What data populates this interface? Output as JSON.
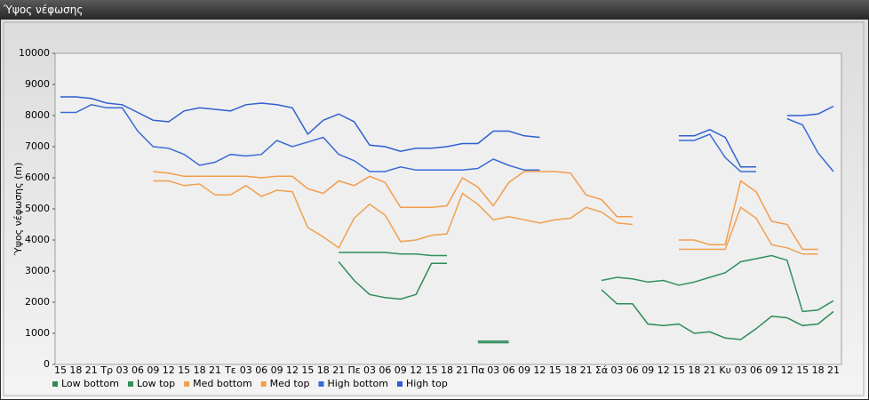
{
  "chart_data": {
    "type": "line",
    "title": "Ύψος νέφωσης",
    "y_label": "Ύψος νέφωσης (m)",
    "categories": [
      "15",
      "18",
      "21",
      "Τρ",
      "03",
      "06",
      "09",
      "12",
      "15",
      "18",
      "21",
      "Τε",
      "03",
      "06",
      "09",
      "12",
      "15",
      "18",
      "21",
      "Πε",
      "03",
      "06",
      "09",
      "12",
      "15",
      "18",
      "21",
      "Πα",
      "03",
      "06",
      "09",
      "12",
      "15",
      "18",
      "21",
      "Σά",
      "03",
      "06",
      "09",
      "12",
      "15",
      "18",
      "21",
      "Κυ",
      "03",
      "06",
      "09",
      "12",
      "15",
      "18",
      "21"
    ],
    "ylim": [
      0,
      10000
    ],
    "yticks": [
      0,
      1000,
      2000,
      3000,
      4000,
      5000,
      6000,
      7000,
      8000,
      9000,
      10000
    ],
    "legend": "bottom",
    "series": [
      {
        "name": "Low bottom",
        "color": "#2e8b57",
        "values": [
          null,
          null,
          null,
          null,
          null,
          null,
          null,
          null,
          null,
          null,
          null,
          null,
          null,
          null,
          null,
          null,
          null,
          null,
          3300,
          2700,
          2250,
          2150,
          2100,
          2250,
          3250,
          3250,
          null,
          700,
          700,
          700,
          null,
          null,
          null,
          null,
          null,
          2400,
          1950,
          1950,
          1300,
          1250,
          1300,
          1000,
          1050,
          850,
          800,
          1150,
          1550,
          1500,
          1250,
          1300,
          1700
        ]
      },
      {
        "name": "Low top",
        "color": "#2f8f5f",
        "values": [
          null,
          null,
          null,
          null,
          null,
          null,
          null,
          null,
          null,
          null,
          null,
          null,
          null,
          null,
          null,
          null,
          null,
          null,
          3600,
          3600,
          3600,
          3600,
          3550,
          3550,
          3500,
          3500,
          null,
          750,
          750,
          750,
          null,
          null,
          null,
          null,
          null,
          2700,
          2800,
          2750,
          2650,
          2700,
          2550,
          2650,
          2800,
          2950,
          3300,
          3400,
          3500,
          3350,
          1700,
          1750,
          2050
        ]
      },
      {
        "name": "Med bottom",
        "color": "#f0a050",
        "values": [
          null,
          null,
          null,
          null,
          null,
          null,
          5900,
          5900,
          5750,
          5800,
          5450,
          5450,
          5750,
          5400,
          5600,
          5550,
          4400,
          4100,
          3750,
          4700,
          5150,
          4800,
          3950,
          4000,
          4150,
          4200,
          5500,
          5150,
          4650,
          4750,
          4650,
          4550,
          4650,
          4700,
          5050,
          4900,
          4550,
          4500,
          null,
          null,
          3700,
          3700,
          3700,
          3700,
          5050,
          4700,
          3850,
          3750,
          3550,
          3550,
          null
        ]
      },
      {
        "name": "Med top",
        "color": "#f39c4a",
        "values": [
          null,
          null,
          null,
          null,
          null,
          null,
          6200,
          6150,
          6050,
          6050,
          6050,
          6050,
          6050,
          6000,
          6050,
          6050,
          5650,
          5500,
          5900,
          5750,
          6050,
          5850,
          5050,
          5050,
          5050,
          5100,
          6000,
          5700,
          5100,
          5850,
          6200,
          6200,
          6200,
          6150,
          5450,
          5300,
          4750,
          4750,
          null,
          null,
          4000,
          4000,
          3850,
          3850,
          5900,
          5550,
          4600,
          4500,
          3700,
          3700,
          null
        ]
      },
      {
        "name": "High bottom",
        "color": "#3a6ad6",
        "values": [
          8100,
          8100,
          8350,
          8250,
          8250,
          7500,
          7000,
          6950,
          6750,
          6400,
          6500,
          6750,
          6700,
          6750,
          7200,
          7000,
          7150,
          7300,
          6750,
          6550,
          6200,
          6200,
          6350,
          6250,
          6250,
          6250,
          6250,
          6300,
          6600,
          6400,
          6250,
          6250,
          null,
          null,
          null,
          null,
          null,
          null,
          null,
          null,
          7200,
          7200,
          7400,
          6650,
          6200,
          6200,
          null,
          7900,
          7700,
          6800,
          6200
        ]
      },
      {
        "name": "High top",
        "color": "#2f5fd0",
        "values": [
          8600,
          8600,
          8550,
          8400,
          8350,
          8100,
          7850,
          7800,
          8150,
          8250,
          8200,
          8150,
          8350,
          8400,
          8350,
          8250,
          7400,
          7850,
          8050,
          7800,
          7050,
          7000,
          6850,
          6950,
          6950,
          7000,
          7100,
          7100,
          7500,
          7500,
          7350,
          7300,
          null,
          null,
          null,
          null,
          null,
          null,
          null,
          null,
          7350,
          7350,
          7550,
          7300,
          6350,
          6350,
          null,
          8000,
          8000,
          8050,
          8300
        ]
      }
    ]
  }
}
